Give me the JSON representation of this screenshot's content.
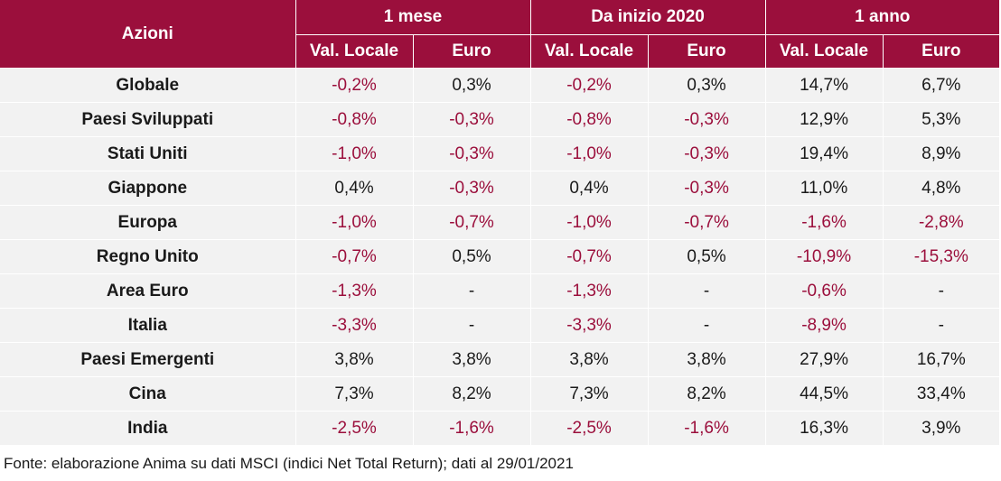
{
  "header": {
    "first_col": "Azioni",
    "groups": [
      "1 mese",
      "Da inizio 2020",
      "1 anno"
    ],
    "subheaders": [
      "Val. Locale",
      "Euro",
      "Val. Locale",
      "Euro",
      "Val. Locale",
      "Euro"
    ]
  },
  "colors": {
    "header_bg": "#9b0f3c",
    "negative_text": "#9b0f3c",
    "row_bg": "#f2f2f2"
  },
  "rows": [
    {
      "name": "Globale",
      "values": [
        "-0,2%",
        "0,3%",
        "-0,2%",
        "0,3%",
        "14,7%",
        "6,7%"
      ]
    },
    {
      "name": "Paesi Sviluppati",
      "values": [
        "-0,8%",
        "-0,3%",
        "-0,8%",
        "-0,3%",
        "12,9%",
        "5,3%"
      ]
    },
    {
      "name": "Stati Uniti",
      "values": [
        "-1,0%",
        "-0,3%",
        "-1,0%",
        "-0,3%",
        "19,4%",
        "8,9%"
      ]
    },
    {
      "name": "Giappone",
      "values": [
        "0,4%",
        "-0,3%",
        "0,4%",
        "-0,3%",
        "11,0%",
        "4,8%"
      ]
    },
    {
      "name": "Europa",
      "values": [
        "-1,0%",
        "-0,7%",
        "-1,0%",
        "-0,7%",
        "-1,6%",
        "-2,8%"
      ]
    },
    {
      "name": "Regno Unito",
      "values": [
        "-0,7%",
        "0,5%",
        "-0,7%",
        "0,5%",
        "-10,9%",
        "-15,3%"
      ]
    },
    {
      "name": "Area Euro",
      "values": [
        "-1,3%",
        "-",
        "-1,3%",
        "-",
        "-0,6%",
        "-"
      ]
    },
    {
      "name": "Italia",
      "values": [
        "-3,3%",
        "-",
        "-3,3%",
        "-",
        "-8,9%",
        "-"
      ]
    },
    {
      "name": "Paesi Emergenti",
      "values": [
        "3,8%",
        "3,8%",
        "3,8%",
        "3,8%",
        "27,9%",
        "16,7%"
      ]
    },
    {
      "name": "Cina",
      "values": [
        "7,3%",
        "8,2%",
        "7,3%",
        "8,2%",
        "44,5%",
        "33,4%"
      ]
    },
    {
      "name": "India",
      "values": [
        "-2,5%",
        "-1,6%",
        "-2,5%",
        "-1,6%",
        "16,3%",
        "3,9%"
      ]
    }
  ],
  "source": "Fonte: elaborazione Anima su dati MSCI (indici Net Total Return); dati al 29/01/2021"
}
